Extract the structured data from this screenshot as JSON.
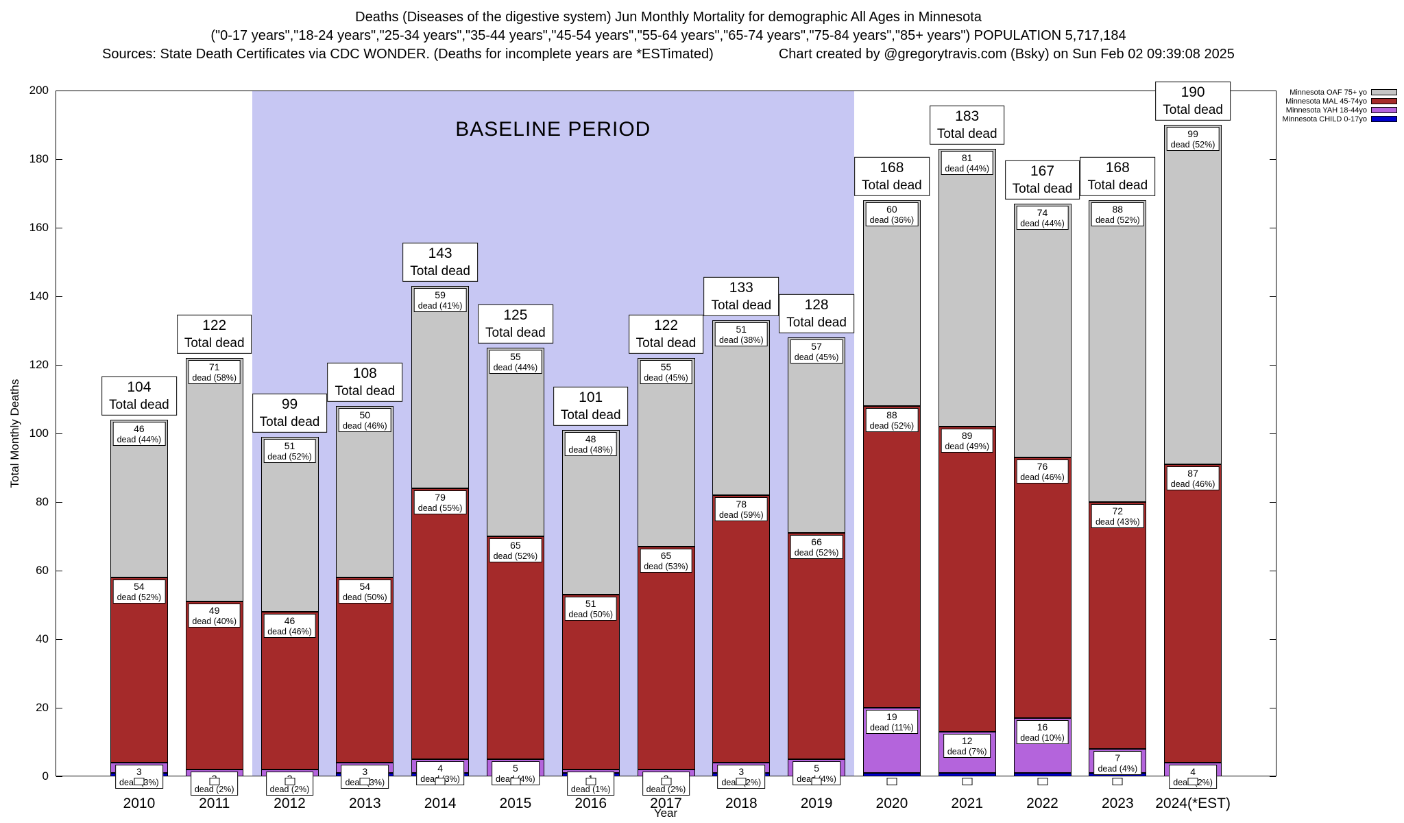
{
  "header": {
    "title_line1": "Deaths (Diseases of the digestive system) Jun Monthly Mortality for demographic All Ages in Minnesota",
    "title_line2": "(\"0-17 years\",\"18-24 years\",\"25-34 years\",\"35-44 years\",\"45-54 years\",\"55-64 years\",\"65-74 years\",\"75-84 years\",\"85+ years\") POPULATION 5,717,184",
    "sources_line": "Sources: State Death Certificates via CDC WONDER. (Deaths for incomplete years are *ESTimated)",
    "credit_line": "Chart created by @gregorytravis.com (Bsky) on Sun Feb 02 09:39:08 2025"
  },
  "baseline": {
    "label": "BASELINE PERIOD",
    "start_category": "2012",
    "end_category": "2019",
    "color": "#c7c7f3"
  },
  "legend": [
    {
      "label": "Minnesota OAF 75+ yo",
      "color": "#c6c6c6"
    },
    {
      "label": "Minnesota MAL 45-74yo",
      "color": "#a52a2a"
    },
    {
      "label": "Minnesota YAH 18-44yo",
      "color": "#b464dc"
    },
    {
      "label": "Minnesota CHILD 0-17yo",
      "color": "#0000cc"
    }
  ],
  "chart_data": {
    "type": "bar",
    "stacked": true,
    "title": "Deaths (Diseases of the digestive system) Jun Monthly Mortality for demographic All Ages in Minnesota",
    "xlabel": "Year",
    "ylabel": "Total Monthly Deaths",
    "ylim": [
      0,
      200
    ],
    "y_ticks": [
      0,
      20,
      40,
      60,
      80,
      100,
      120,
      140,
      160,
      180,
      200
    ],
    "grid": false,
    "legend_position": "top-right",
    "categories": [
      "2010",
      "2011",
      "2012",
      "2013",
      "2014",
      "2015",
      "2016",
      "2017",
      "2018",
      "2019",
      "2020",
      "2021",
      "2022",
      "2023",
      "2024(*EST)"
    ],
    "totals": [
      104,
      122,
      99,
      108,
      143,
      125,
      101,
      122,
      133,
      128,
      168,
      183,
      167,
      168,
      190
    ],
    "total_label_suffix": "Total dead",
    "series": [
      {
        "key": "child",
        "name": "Minnesota CHILD 0-17yo",
        "color": "#0000cc",
        "values": [
          1,
          0,
          0,
          1,
          1,
          0,
          1,
          0,
          1,
          0,
          1,
          1,
          1,
          1,
          0
        ],
        "pct_labels": null
      },
      {
        "key": "yah",
        "name": "Minnesota YAH 18-44yo",
        "color": "#b464dc",
        "values": [
          3,
          2,
          2,
          3,
          4,
          5,
          1,
          2,
          3,
          5,
          19,
          12,
          16,
          7,
          4
        ],
        "pct_labels": [
          "dead (3%)",
          "dead (2%)",
          "dead (2%)",
          "dead (3%)",
          "dead (3%)",
          "dead (4%)",
          "dead (1%)",
          "dead (2%)",
          "dead (2%)",
          "dead (4%)",
          "dead (11%)",
          "dead (7%)",
          "dead (10%)",
          "dead (4%)",
          "dead (2%)"
        ]
      },
      {
        "key": "mal",
        "name": "Minnesota MAL 45-74yo",
        "color": "#a52a2a",
        "values": [
          54,
          49,
          46,
          54,
          79,
          65,
          51,
          65,
          78,
          66,
          88,
          89,
          76,
          72,
          87
        ],
        "pct_labels": [
          "dead (52%)",
          "dead (40%)",
          "dead (46%)",
          "dead (50%)",
          "dead (55%)",
          "dead (52%)",
          "dead (50%)",
          "dead (53%)",
          "dead (59%)",
          "dead (52%)",
          "dead (52%)",
          "dead (49%)",
          "dead (46%)",
          "dead (43%)",
          "dead (46%)"
        ]
      },
      {
        "key": "oaf",
        "name": "Minnesota OAF 75+ yo",
        "color": "#c6c6c6",
        "values": [
          46,
          71,
          51,
          50,
          59,
          55,
          48,
          55,
          51,
          57,
          60,
          81,
          74,
          88,
          99
        ],
        "pct_labels": [
          "dead (44%)",
          "dead (58%)",
          "dead (52%)",
          "dead (46%)",
          "dead (41%)",
          "dead (44%)",
          "dead (48%)",
          "dead (45%)",
          "dead (38%)",
          "dead (45%)",
          "dead (36%)",
          "dead (44%)",
          "dead (44%)",
          "dead (52%)",
          "dead (52%)"
        ]
      }
    ]
  }
}
